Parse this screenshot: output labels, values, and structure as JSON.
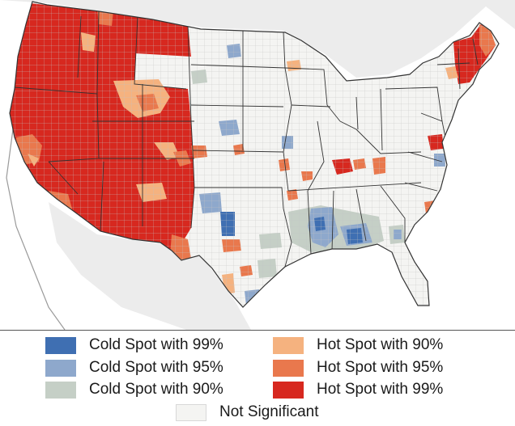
{
  "legend": {
    "items": [
      {
        "label": "Cold Spot with 99%",
        "color": "#3f6fb2"
      },
      {
        "label": "Cold Spot with 95%",
        "color": "#8ea8cc"
      },
      {
        "label": "Cold Spot with 90%",
        "color": "#c5cfc6"
      },
      {
        "label": "Hot Spot with 90%",
        "color": "#f5b27f"
      },
      {
        "label": "Hot Spot with 95%",
        "color": "#e9784d"
      },
      {
        "label": "Hot Spot with 99%",
        "color": "#d7281f"
      },
      {
        "label": "Not Significant",
        "color": "#f4f4f2"
      }
    ]
  },
  "map": {
    "land_color": "#f4f4f2",
    "state_border_color": "#333333",
    "county_border_color": "#bcbcbc"
  }
}
